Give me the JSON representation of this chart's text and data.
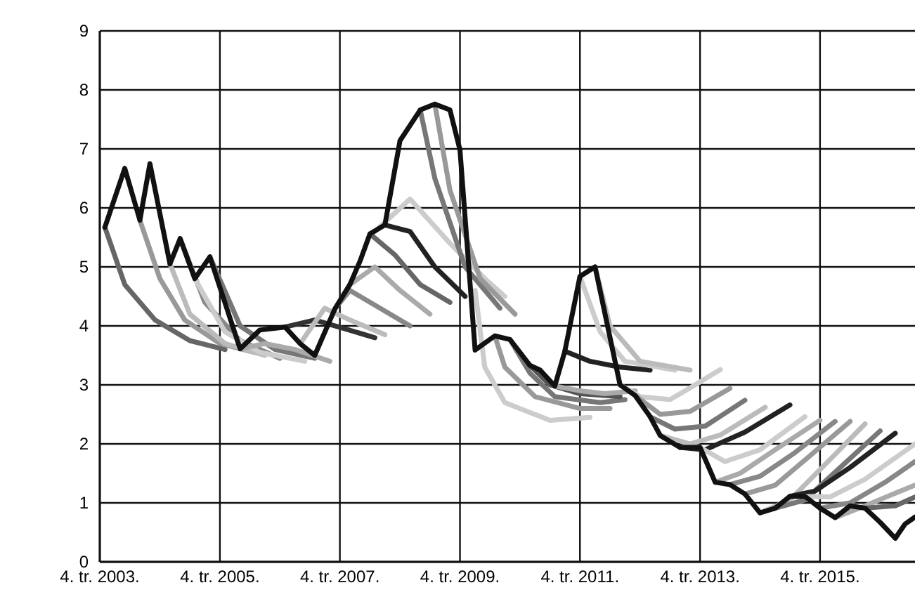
{
  "chart_data": {
    "type": "line",
    "xlim": [
      "2003-10",
      "2017-05"
    ],
    "ylim": [
      0,
      9
    ],
    "xticks": [
      {
        "value": "2003-10",
        "label": "4. tr. 2003."
      },
      {
        "value": "2005-10",
        "label": "4. tr. 2005."
      },
      {
        "value": "2007-10",
        "label": "4. tr. 2007."
      },
      {
        "value": "2009-10",
        "label": "4. tr. 2009."
      },
      {
        "value": "2011-10",
        "label": "4. tr. 2011."
      },
      {
        "value": "2013-10",
        "label": "4. tr. 2013."
      },
      {
        "value": "2015-10",
        "label": "4. tr. 2015."
      }
    ],
    "yticks": [
      0,
      1,
      2,
      3,
      4,
      5,
      6,
      7,
      8,
      9
    ],
    "grid": true,
    "line_style": "solid",
    "marker": "none",
    "series": [
      {
        "color": "#666666",
        "x": [
          "2003-11",
          "2004-03",
          "2004-09",
          "2005-04",
          "2005-11"
        ],
        "values": [
          5.67,
          4.7,
          4.1,
          3.75,
          3.6
        ]
      },
      {
        "color": "#999999",
        "x": [
          "2004-06",
          "2004-10",
          "2005-03",
          "2005-10",
          "2006-05"
        ],
        "values": [
          5.79,
          4.8,
          4.1,
          3.7,
          3.55
        ]
      },
      {
        "color": "#bbbbbb",
        "x": [
          "2004-12",
          "2005-04",
          "2005-11",
          "2006-07"
        ],
        "values": [
          5.05,
          4.2,
          3.7,
          3.5
        ]
      },
      {
        "color": "#888888",
        "x": [
          "2005-02",
          "2005-07",
          "2006-02",
          "2006-10"
        ],
        "values": [
          5.48,
          4.4,
          3.75,
          3.45
        ]
      },
      {
        "color": "#cccccc",
        "x": [
          "2005-05",
          "2005-11",
          "2006-06",
          "2007-03"
        ],
        "values": [
          4.8,
          3.9,
          3.55,
          3.4
        ]
      },
      {
        "color": "#777777",
        "x": [
          "2005-08",
          "2006-02",
          "2006-09",
          "2007-05"
        ],
        "values": [
          5.17,
          4.0,
          3.6,
          3.45
        ]
      },
      {
        "color": "#aaaaaa",
        "x": [
          "2006-02",
          "2006-07",
          "2007-01",
          "2007-08"
        ],
        "values": [
          3.61,
          3.7,
          3.6,
          3.4
        ]
      },
      {
        "color": "#333333",
        "x": [
          "2006-11",
          "2007-05",
          "2007-11",
          "2008-05"
        ],
        "values": [
          3.98,
          4.1,
          3.95,
          3.8
        ]
      },
      {
        "color": "#bbbbbb",
        "x": [
          "2007-02",
          "2007-07",
          "2007-12",
          "2008-07"
        ],
        "values": [
          3.7,
          4.3,
          4.1,
          3.85
        ]
      },
      {
        "color": "#888888",
        "x": [
          "2007-09",
          "2007-12",
          "2008-06",
          "2008-12"
        ],
        "values": [
          4.29,
          4.6,
          4.3,
          4.0
        ]
      },
      {
        "color": "#aaaaaa",
        "x": [
          "2007-12",
          "2008-05",
          "2008-10",
          "2009-04"
        ],
        "values": [
          4.7,
          5.0,
          4.6,
          4.2
        ]
      },
      {
        "color": "#666666",
        "x": [
          "2008-04",
          "2008-09",
          "2009-02",
          "2009-08"
        ],
        "values": [
          5.56,
          5.2,
          4.7,
          4.4
        ]
      },
      {
        "color": "#222222",
        "x": [
          "2008-07",
          "2008-12",
          "2009-05",
          "2009-11"
        ],
        "values": [
          5.71,
          5.6,
          5.0,
          4.5
        ]
      },
      {
        "color": "#cccccc",
        "x": [
          "2008-05",
          "2008-12",
          "2009-08",
          "2010-03",
          "2010-07"
        ],
        "values": [
          5.6,
          6.15,
          5.4,
          4.8,
          4.5
        ]
      },
      {
        "color": "#777777",
        "x": [
          "2009-02",
          "2009-05",
          "2009-11",
          "2010-06"
        ],
        "values": [
          7.66,
          6.5,
          5.0,
          4.3
        ]
      },
      {
        "color": "#999999",
        "x": [
          "2009-05",
          "2009-08",
          "2010-02",
          "2010-09"
        ],
        "values": [
          7.76,
          6.3,
          4.8,
          4.2
        ]
      },
      {
        "color": "#cccccc",
        "x": [
          "2010-01",
          "2010-03",
          "2010-07",
          "2011-04",
          "2011-12"
        ],
        "values": [
          4.6,
          3.3,
          2.7,
          2.4,
          2.45
        ]
      },
      {
        "color": "#999999",
        "x": [
          "2010-05",
          "2010-07",
          "2011-01",
          "2011-10",
          "2012-04"
        ],
        "values": [
          3.83,
          3.3,
          2.8,
          2.6,
          2.6
        ]
      },
      {
        "color": "#777777",
        "x": [
          "2010-08",
          "2010-12",
          "2011-05",
          "2012-02",
          "2012-07"
        ],
        "values": [
          3.77,
          3.2,
          2.8,
          2.7,
          2.75
        ]
      },
      {
        "color": "#555555",
        "x": [
          "2010-12",
          "2011-04",
          "2011-10",
          "2012-06"
        ],
        "values": [
          3.33,
          3.0,
          2.85,
          2.8
        ]
      },
      {
        "color": "#aaaaaa",
        "x": [
          "2011-05",
          "2011-10",
          "2012-03",
          "2012-09"
        ],
        "values": [
          2.98,
          2.9,
          2.85,
          2.9
        ]
      },
      {
        "color": "#222222",
        "x": [
          "2011-07",
          "2011-12",
          "2012-06",
          "2012-12"
        ],
        "values": [
          3.57,
          3.4,
          3.3,
          3.25
        ]
      },
      {
        "color": "#cccccc",
        "x": [
          "2011-10",
          "2012-02",
          "2012-07",
          "2013-05"
        ],
        "values": [
          4.84,
          3.9,
          3.4,
          3.25
        ]
      },
      {
        "color": "#bbbbbb",
        "x": [
          "2012-01",
          "2012-04",
          "2012-10",
          "2013-08"
        ],
        "values": [
          5.0,
          4.0,
          3.4,
          3.25
        ]
      },
      {
        "color": "#cccccc",
        "x": [
          "2012-06",
          "2012-10",
          "2013-04",
          "2013-09",
          "2014-02"
        ],
        "values": [
          3.0,
          2.8,
          2.75,
          3.0,
          3.26
        ]
      },
      {
        "color": "#999999",
        "x": [
          "2012-09",
          "2013-02",
          "2013-08",
          "2014-04"
        ],
        "values": [
          2.82,
          2.5,
          2.55,
          2.94
        ]
      },
      {
        "color": "#777777",
        "x": [
          "2012-12",
          "2013-05",
          "2013-11",
          "2014-07"
        ],
        "values": [
          2.46,
          2.25,
          2.3,
          2.74
        ]
      },
      {
        "color": "#bbbbbb",
        "x": [
          "2013-02",
          "2013-08",
          "2014-02",
          "2014-11"
        ],
        "values": [
          2.14,
          2.0,
          2.15,
          2.62
        ]
      },
      {
        "color": "#222222",
        "x": [
          "2013-06",
          "2013-11",
          "2014-07",
          "2015-04"
        ],
        "values": [
          1.94,
          1.9,
          2.2,
          2.66
        ]
      },
      {
        "color": "#cccccc",
        "x": [
          "2013-10",
          "2014-03",
          "2014-10",
          "2015-07"
        ],
        "values": [
          1.94,
          1.7,
          1.9,
          2.46
        ]
      },
      {
        "color": "#aaaaaa",
        "x": [
          "2014-01",
          "2014-06",
          "2015-01",
          "2015-10"
        ],
        "values": [
          1.35,
          1.5,
          1.9,
          2.4
        ]
      },
      {
        "color": "#888888",
        "x": [
          "2014-04",
          "2014-10",
          "2015-05",
          "2016-01"
        ],
        "values": [
          1.31,
          1.45,
          1.85,
          2.38
        ]
      },
      {
        "color": "#999999",
        "x": [
          "2014-07",
          "2015-01",
          "2015-08",
          "2016-04"
        ],
        "values": [
          1.15,
          1.3,
          1.8,
          2.38
        ]
      },
      {
        "color": "#bbbbbb",
        "x": [
          "2014-10",
          "2015-04",
          "2015-11",
          "2016-07"
        ],
        "values": [
          0.83,
          1.05,
          1.65,
          2.34
        ]
      },
      {
        "color": "#777777",
        "x": [
          "2015-01",
          "2015-07",
          "2016-02",
          "2016-10"
        ],
        "values": [
          0.91,
          1.05,
          1.6,
          2.22
        ]
      },
      {
        "color": "#222222",
        "x": [
          "2015-04",
          "2015-09",
          "2016-04",
          "2017-01"
        ],
        "values": [
          1.11,
          1.2,
          1.6,
          2.18
        ]
      },
      {
        "color": "#cccccc",
        "x": [
          "2015-07",
          "2015-12",
          "2016-07",
          "2017-05"
        ],
        "values": [
          1.11,
          1.1,
          1.4,
          2.0
        ]
      },
      {
        "color": "#888888",
        "x": [
          "2015-10",
          "2016-04",
          "2016-11",
          "2017-05"
        ],
        "values": [
          0.91,
          1.0,
          1.35,
          1.7
        ]
      },
      {
        "color": "#aaaaaa",
        "x": [
          "2016-01",
          "2016-07",
          "2017-02",
          "2017-05"
        ],
        "values": [
          0.75,
          0.95,
          1.2,
          1.3
        ]
      },
      {
        "color": "#666666",
        "x": [
          "2016-07",
          "2017-01",
          "2017-05"
        ],
        "values": [
          0.91,
          0.95,
          1.1
        ]
      },
      {
        "color": "#111111",
        "x": [
          "2003-11",
          "2004-03",
          "2004-06",
          "2004-08",
          "2004-12",
          "2005-02",
          "2005-05",
          "2005-08",
          "2006-02",
          "2006-06",
          "2006-11",
          "2007-02",
          "2007-05",
          "2007-09",
          "2007-12",
          "2008-02",
          "2008-04",
          "2008-07",
          "2008-10",
          "2009-02",
          "2009-05",
          "2009-08",
          "2009-10",
          "2010-01",
          "2010-05",
          "2010-08",
          "2010-12",
          "2011-02",
          "2011-05",
          "2011-07",
          "2011-10",
          "2012-01",
          "2012-06",
          "2012-09",
          "2012-12",
          "2013-02",
          "2013-06",
          "2013-10",
          "2014-01",
          "2014-04",
          "2014-07",
          "2014-10",
          "2015-01",
          "2015-04",
          "2015-07",
          "2015-10",
          "2016-01",
          "2016-04",
          "2016-07",
          "2016-10",
          "2017-01",
          "2017-03",
          "2017-05"
        ],
        "values": [
          5.67,
          6.67,
          5.79,
          6.75,
          5.05,
          5.48,
          4.8,
          5.17,
          3.61,
          3.93,
          3.98,
          3.7,
          3.5,
          4.29,
          4.7,
          5.1,
          5.56,
          5.71,
          7.14,
          7.66,
          7.76,
          7.66,
          6.98,
          3.59,
          3.83,
          3.77,
          3.33,
          3.25,
          2.98,
          3.57,
          4.84,
          5.0,
          3.0,
          2.82,
          2.46,
          2.14,
          1.94,
          1.94,
          1.35,
          1.31,
          1.15,
          0.83,
          0.91,
          1.11,
          1.11,
          0.91,
          0.75,
          0.95,
          0.91,
          0.67,
          0.4,
          0.64,
          0.76
        ]
      }
    ]
  }
}
